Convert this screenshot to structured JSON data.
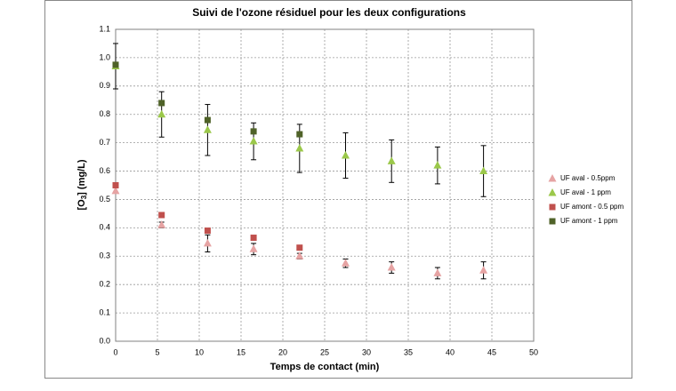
{
  "chart_data": {
    "type": "scatter",
    "title": "Suivi de l'ozone résiduel pour les deux configurations",
    "xlabel": "Temps de contact (min)",
    "ylabel": [
      "[O",
      "3",
      "] (mg/L)"
    ],
    "xlim": [
      0,
      50
    ],
    "xticks": [
      0,
      5,
      10,
      15,
      20,
      25,
      30,
      35,
      40,
      45,
      50
    ],
    "ylim": [
      0,
      1.1
    ],
    "yticks": [
      {
        "value": 0,
        "label": "0.0"
      },
      0.1,
      0.2,
      0.3,
      0.4,
      0.5,
      0.6,
      0.7,
      0.8,
      0.9,
      {
        "value": 1,
        "label": "1.0"
      },
      1.1
    ],
    "grid": true,
    "legend": "right",
    "series": [
      {
        "name": "UF aval - 0.5ppm",
        "color": "#e6a3a3",
        "marker": "triangle",
        "x": [
          0,
          5.5,
          11,
          16.5,
          22,
          27.5,
          33,
          38.5,
          44
        ],
        "values": [
          0.53,
          0.41,
          0.345,
          0.325,
          0.3,
          0.275,
          0.26,
          0.24,
          0.25
        ],
        "errors": [
          null,
          0.01,
          0.03,
          0.02,
          0.01,
          0.015,
          0.02,
          0.02,
          0.03
        ]
      },
      {
        "name": "UF aval - 1 ppm",
        "color": "#9bc84a",
        "marker": "triangle",
        "x": [
          0,
          5.5,
          11,
          16.5,
          22,
          27.5,
          33,
          38.5,
          44
        ],
        "values": [
          0.97,
          0.8,
          0.745,
          0.705,
          0.68,
          0.655,
          0.635,
          0.62,
          0.6
        ],
        "errors": [
          0.08,
          0.08,
          0.09,
          0.065,
          0.085,
          0.08,
          0.075,
          0.065,
          0.09
        ]
      },
      {
        "name": "UF amont - 0.5 ppm",
        "color": "#c0504d",
        "marker": "square",
        "x": [
          0,
          5.5,
          11,
          16.5,
          22
        ],
        "values": [
          0.55,
          0.445,
          0.39,
          0.365,
          0.33
        ]
      },
      {
        "name": "UF amont - 1 ppm",
        "color": "#4f6228",
        "marker": "square",
        "x": [
          0,
          5.5,
          11,
          16.5,
          22
        ],
        "values": [
          0.975,
          0.84,
          0.78,
          0.74,
          0.73
        ]
      }
    ]
  }
}
